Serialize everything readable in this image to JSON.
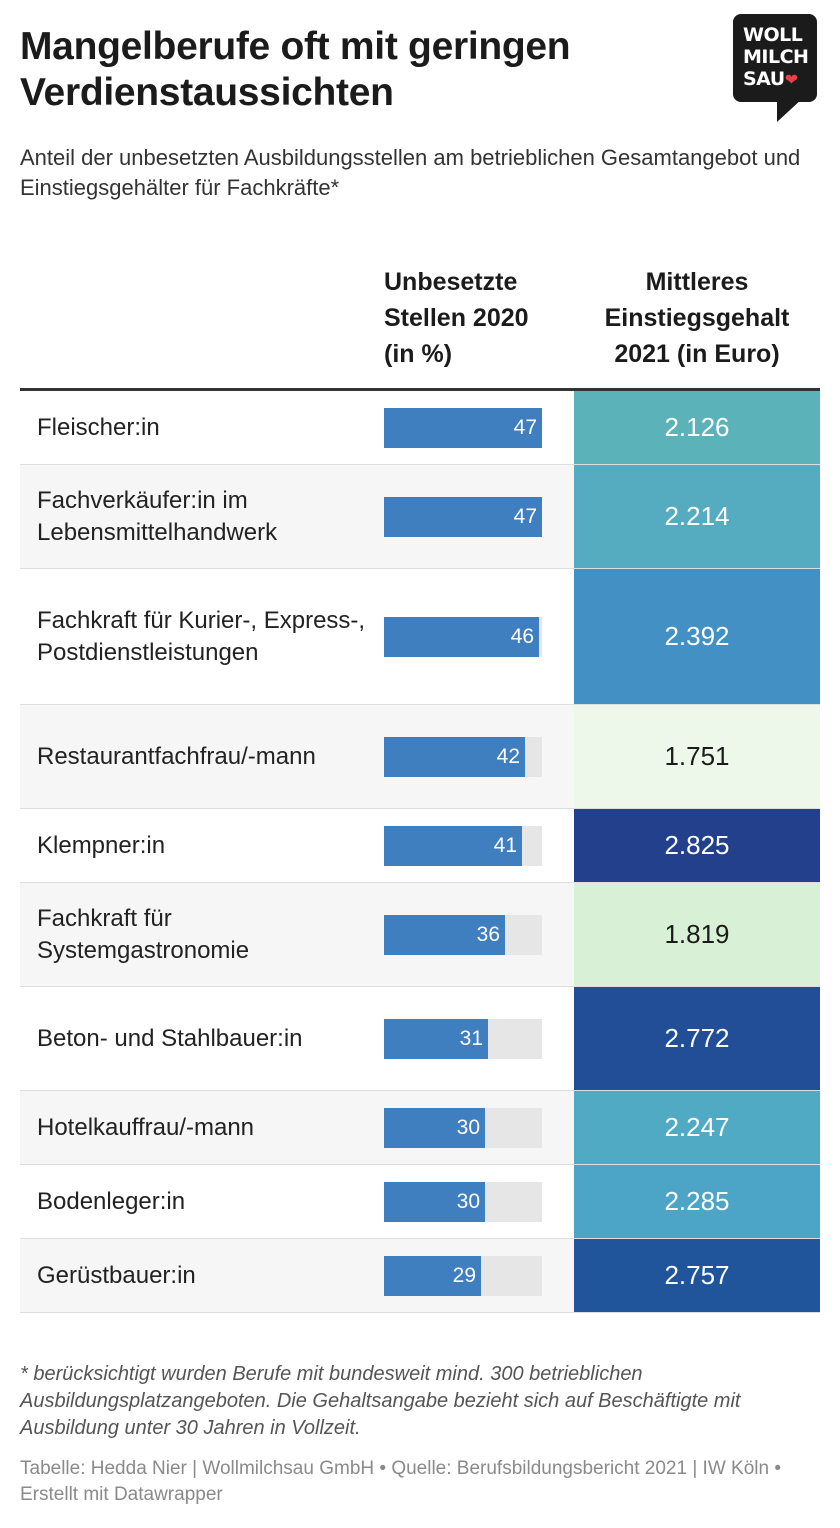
{
  "title": "Mangelberufe oft mit geringen Verdienstaussichten",
  "subtitle": "Anteil der unbesetzten Ausbildungsstellen am betrieblichen Gesamtangebot und Einstiegsgehälter für Fachkräfte*",
  "logo": {
    "text_lines": [
      "WOLL",
      "MILCH",
      "SAU"
    ],
    "heart_icon": "heart-icon",
    "background": "#1b1b1b",
    "heart_color": "#e8404b"
  },
  "columns": {
    "label": "",
    "unfilled": "Unbesetzte Stellen 2020 (in %)",
    "salary": "Mittleres Einstiegsgehalt 2021 (in Euro)"
  },
  "colors": {
    "bar": "#3f7fbf",
    "bar_track": "#e6e6e6",
    "header_rule": "#333333"
  },
  "chart_data": {
    "type": "table",
    "bar_max": 47,
    "rows": [
      {
        "occupation": "Fleischer:in",
        "unfilled_pct": 47,
        "salary": "2.126",
        "salary_bg": "#5bb2b8",
        "salary_fg": "#ffffff",
        "lines": 1
      },
      {
        "occupation": "Fachverkäufer:in im Lebensmittelhandwerk",
        "unfilled_pct": 47,
        "salary": "2.214",
        "salary_bg": "#55abbf",
        "salary_fg": "#ffffff",
        "lines": 2
      },
      {
        "occupation": "Fachkraft für Kurier-, Express-, Postdienstleistungen",
        "unfilled_pct": 46,
        "salary": "2.392",
        "salary_bg": "#4290c4",
        "salary_fg": "#ffffff",
        "lines": 3
      },
      {
        "occupation": "Restaurantfachfrau/-mann",
        "unfilled_pct": 42,
        "salary": "1.751",
        "salary_bg": "#eef8ea",
        "salary_fg": "#1b1b1b",
        "lines": 2
      },
      {
        "occupation": "Klempner:in",
        "unfilled_pct": 41,
        "salary": "2.825",
        "salary_bg": "#22408c",
        "salary_fg": "#ffffff",
        "lines": 1
      },
      {
        "occupation": "Fachkraft für Systemgastronomie",
        "unfilled_pct": 36,
        "salary": "1.819",
        "salary_bg": "#d8f1d6",
        "salary_fg": "#1b1b1b",
        "lines": 2
      },
      {
        "occupation": "Beton- und Stahlbauer:in",
        "unfilled_pct": 31,
        "salary": "2.772",
        "salary_bg": "#214e97",
        "salary_fg": "#ffffff",
        "lines": 2
      },
      {
        "occupation": "Hotelkauffrau/-mann",
        "unfilled_pct": 30,
        "salary": "2.247",
        "salary_bg": "#50aac4",
        "salary_fg": "#ffffff",
        "lines": 1
      },
      {
        "occupation": "Bodenleger:in",
        "unfilled_pct": 30,
        "salary": "2.285",
        "salary_bg": "#4ca5c6",
        "salary_fg": "#ffffff",
        "lines": 1
      },
      {
        "occupation": "Gerüstbauer:in",
        "unfilled_pct": 29,
        "salary": "2.757",
        "salary_bg": "#21559b",
        "salary_fg": "#ffffff",
        "lines": 1
      }
    ]
  },
  "footnote": "* berücksichtigt wurden Berufe mit bundesweit mind. 300 betrieblichen Ausbildungsplatzangeboten. Die Gehaltsangabe bezieht sich auf Beschäftigte mit Ausbildung unter 30 Jahren in Vollzeit.",
  "source": "Tabelle: Hedda Nier | Wollmilchsau GmbH • Quelle: Berufsbildungsbericht 2021 | IW Köln • Erstellt mit Datawrapper"
}
